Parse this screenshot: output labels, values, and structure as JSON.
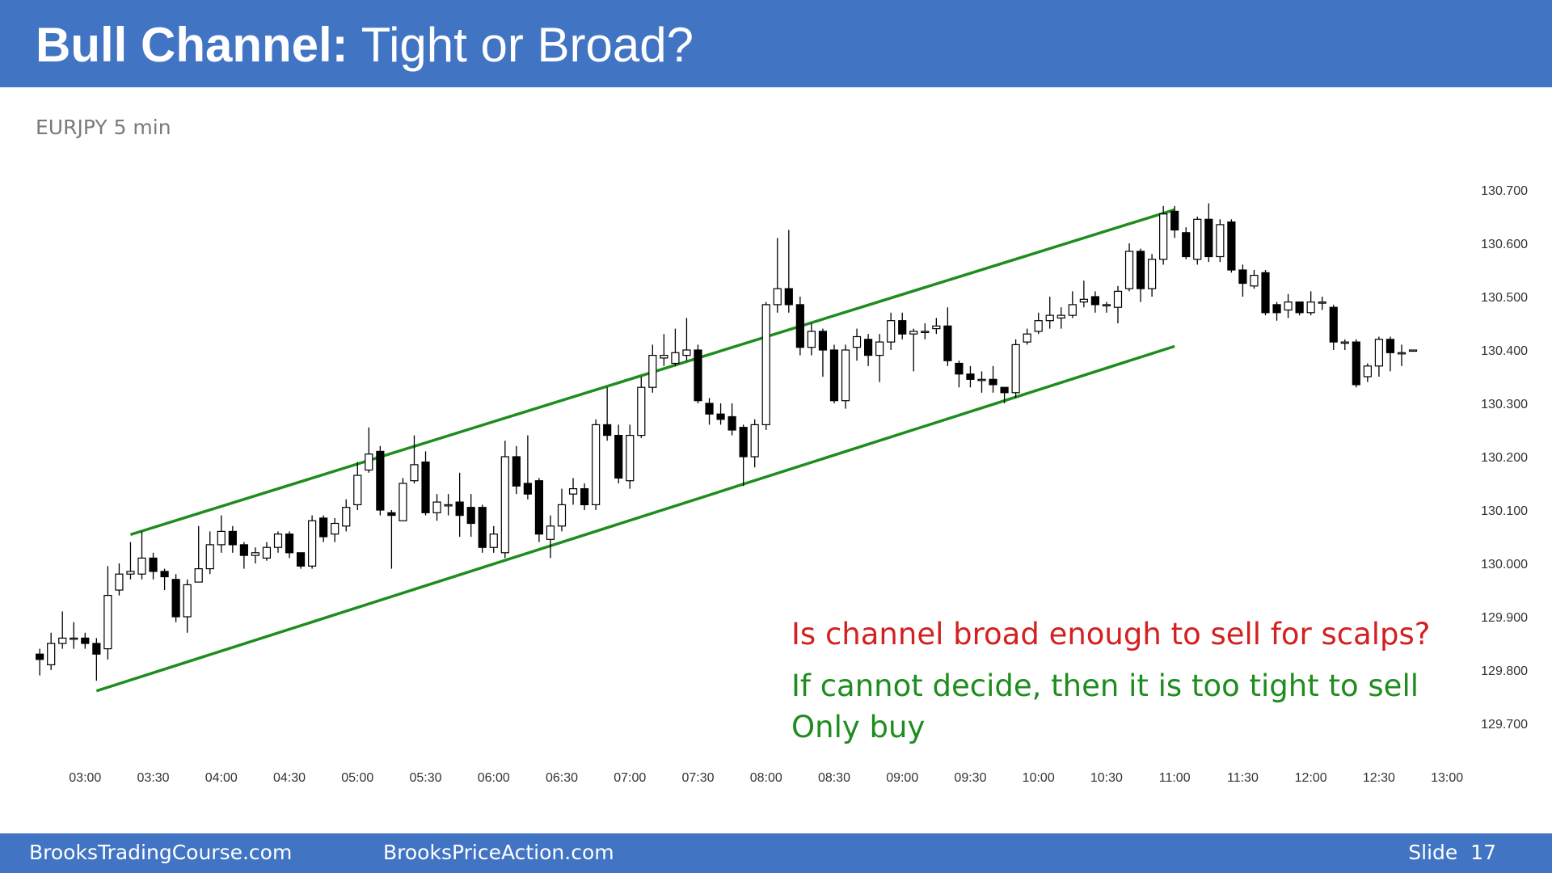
{
  "chart_data": {
    "type": "candlestick",
    "title": [
      "Bull Channel:",
      "Tight or Broad?"
    ],
    "subtitle": "EURJPY 5 min",
    "annotations": [
      {
        "text": "Is channel broad enough to sell for scalps?",
        "color": "#d42020"
      },
      {
        "text": "If cannot decide, then it is too tight to sell",
        "color": "#1e8c1e"
      },
      {
        "text": "Only buy",
        "color": "#1e8c1e"
      }
    ],
    "up_color": "#ffffff",
    "down_color": "#000000",
    "x": [
      "02:40",
      "02:45",
      "02:50",
      "02:55",
      "03:00",
      "03:05",
      "03:10",
      "03:15",
      "03:20",
      "03:25",
      "03:30",
      "03:35",
      "03:40",
      "03:45",
      "03:50",
      "03:55",
      "04:00",
      "04:05",
      "04:10",
      "04:15",
      "04:20",
      "04:25",
      "04:30",
      "04:35",
      "04:40",
      "04:45",
      "04:50",
      "04:55",
      "05:00",
      "05:05",
      "05:10",
      "05:15",
      "05:20",
      "05:25",
      "05:30",
      "05:35",
      "05:40",
      "05:45",
      "05:50",
      "05:55",
      "06:00",
      "06:05",
      "06:10",
      "06:15",
      "06:20",
      "06:25",
      "06:30",
      "06:35",
      "06:40",
      "06:45",
      "06:50",
      "06:55",
      "07:00",
      "07:05",
      "07:10",
      "07:15",
      "07:20",
      "07:25",
      "07:30",
      "07:35",
      "07:40",
      "07:45",
      "07:50",
      "07:55",
      "08:00",
      "08:05",
      "08:10",
      "08:15",
      "08:20",
      "08:25",
      "08:30",
      "08:35",
      "08:40",
      "08:45",
      "08:50",
      "08:55",
      "09:00",
      "09:05",
      "09:10",
      "09:15",
      "09:20",
      "09:25",
      "09:30",
      "09:35",
      "09:40",
      "09:45",
      "09:50",
      "09:55",
      "10:00",
      "10:05",
      "10:10",
      "10:15",
      "10:20",
      "10:25",
      "10:30",
      "10:35",
      "10:40",
      "10:45",
      "10:50",
      "10:55",
      "11:00",
      "11:05",
      "11:10",
      "11:15",
      "11:20",
      "11:25",
      "11:30",
      "11:35",
      "11:40",
      "11:45",
      "11:50",
      "11:55",
      "12:00",
      "12:05",
      "12:10",
      "12:15",
      "12:20",
      "12:25",
      "12:30",
      "12:35",
      "12:40",
      "12:45"
    ],
    "open": [
      129.83,
      129.81,
      129.85,
      129.86,
      129.86,
      129.85,
      129.84,
      129.95,
      129.98,
      129.98,
      130.01,
      129.985,
      129.97,
      129.9,
      129.965,
      129.99,
      130.035,
      130.06,
      130.035,
      130.015,
      130.01,
      130.03,
      130.055,
      130.02,
      129.995,
      130.085,
      130.055,
      130.07,
      130.11,
      130.175,
      130.21,
      130.095,
      130.08,
      130.155,
      130.19,
      130.095,
      130.11,
      130.115,
      130.105,
      130.105,
      130.03,
      130.02,
      130.2,
      130.15,
      130.155,
      130.045,
      130.07,
      130.13,
      130.14,
      130.11,
      130.26,
      130.24,
      130.155,
      130.24,
      130.33,
      130.385,
      130.375,
      130.39,
      130.4,
      130.3,
      130.28,
      130.275,
      130.255,
      130.2,
      130.26,
      130.485,
      130.515,
      130.485,
      130.405,
      130.435,
      130.4,
      130.305,
      130.405,
      130.42,
      130.39,
      130.415,
      130.455,
      130.43,
      130.435,
      130.44,
      130.445,
      130.375,
      130.355,
      130.345,
      130.345,
      130.33,
      130.32,
      130.415,
      130.435,
      130.455,
      130.46,
      130.465,
      130.49,
      130.5,
      130.485,
      130.48,
      130.515,
      130.585,
      130.515,
      130.57,
      130.66,
      130.62,
      130.57,
      130.645,
      130.575,
      130.64,
      130.55,
      130.52,
      130.545,
      130.485,
      130.475,
      130.49,
      130.47,
      130.49,
      130.48,
      130.415,
      130.415,
      130.35,
      130.37,
      130.42,
      130.395,
      130.4
    ],
    "high": [
      129.84,
      129.87,
      129.91,
      129.89,
      129.87,
      129.86,
      129.995,
      130.0,
      130.04,
      130.06,
      130.02,
      129.99,
      129.98,
      129.97,
      130.07,
      130.06,
      130.09,
      130.07,
      130.04,
      130.03,
      130.04,
      130.06,
      130.06,
      130.02,
      130.09,
      130.09,
      130.085,
      130.12,
      130.19,
      130.255,
      130.22,
      130.1,
      130.16,
      130.24,
      130.21,
      130.13,
      130.13,
      130.17,
      130.13,
      130.11,
      130.07,
      130.23,
      130.22,
      130.24,
      130.16,
      130.09,
      130.14,
      130.16,
      130.15,
      130.27,
      130.33,
      130.26,
      130.26,
      130.35,
      130.41,
      130.43,
      130.44,
      130.46,
      130.41,
      130.31,
      130.3,
      130.3,
      130.26,
      130.27,
      130.49,
      130.61,
      130.625,
      130.5,
      130.45,
      130.44,
      130.41,
      130.41,
      130.44,
      130.43,
      130.43,
      130.47,
      130.47,
      130.44,
      130.45,
      130.46,
      130.48,
      130.38,
      130.37,
      130.36,
      130.37,
      130.33,
      130.42,
      130.44,
      130.47,
      130.5,
      130.48,
      130.51,
      130.53,
      130.51,
      130.49,
      130.52,
      130.6,
      130.59,
      130.58,
      130.67,
      130.67,
      130.63,
      130.65,
      130.675,
      130.645,
      130.645,
      130.56,
      130.55,
      130.55,
      130.49,
      130.505,
      130.49,
      130.51,
      130.5,
      130.485,
      130.42,
      130.42,
      130.375,
      130.425,
      130.425,
      130.41,
      130.4
    ],
    "low": [
      129.79,
      129.8,
      129.84,
      129.84,
      129.84,
      129.78,
      129.82,
      129.94,
      129.97,
      129.97,
      129.97,
      129.95,
      129.89,
      129.87,
      129.965,
      129.98,
      130.02,
      130.02,
      129.99,
      130.0,
      130.005,
      130.02,
      130.01,
      129.99,
      129.99,
      130.04,
      130.04,
      130.06,
      130.1,
      130.17,
      130.09,
      129.99,
      130.08,
      130.15,
      130.09,
      130.08,
      130.09,
      130.05,
      130.05,
      130.02,
      130.02,
      130.01,
      130.13,
      130.12,
      130.04,
      130.01,
      130.06,
      130.11,
      130.1,
      130.1,
      130.23,
      130.15,
      130.14,
      130.235,
      130.32,
      130.37,
      130.37,
      130.38,
      130.3,
      130.26,
      130.26,
      130.24,
      130.145,
      130.18,
      130.25,
      130.47,
      130.47,
      130.39,
      130.39,
      130.35,
      130.3,
      130.29,
      130.38,
      130.37,
      130.34,
      130.4,
      130.42,
      130.36,
      130.42,
      130.43,
      130.37,
      130.33,
      130.33,
      130.32,
      130.32,
      130.3,
      130.31,
      130.41,
      130.43,
      130.44,
      130.44,
      130.46,
      130.48,
      130.47,
      130.47,
      130.45,
      130.51,
      130.49,
      130.5,
      130.56,
      130.61,
      130.57,
      130.56,
      130.565,
      130.565,
      130.545,
      130.5,
      130.515,
      130.465,
      130.455,
      130.46,
      130.465,
      130.465,
      130.475,
      130.4,
      130.4,
      130.33,
      130.34,
      130.35,
      130.36,
      130.37,
      130.4
    ],
    "close": [
      129.82,
      129.85,
      129.86,
      129.86,
      129.85,
      129.83,
      129.94,
      129.98,
      129.985,
      130.01,
      129.985,
      129.975,
      129.9,
      129.96,
      129.99,
      130.035,
      130.06,
      130.035,
      130.015,
      130.02,
      130.03,
      130.055,
      130.02,
      129.995,
      130.08,
      130.05,
      130.075,
      130.105,
      130.165,
      130.205,
      130.1,
      130.09,
      130.15,
      130.185,
      130.095,
      130.115,
      130.11,
      130.09,
      130.075,
      130.03,
      130.055,
      130.2,
      130.145,
      130.13,
      130.055,
      130.07,
      130.11,
      130.14,
      130.11,
      130.26,
      130.24,
      130.16,
      130.24,
      130.33,
      130.39,
      130.39,
      130.395,
      130.4,
      130.305,
      130.28,
      130.27,
      130.25,
      130.2,
      130.26,
      130.485,
      130.515,
      130.485,
      130.405,
      130.435,
      130.4,
      130.305,
      130.4,
      130.425,
      130.39,
      130.415,
      130.455,
      130.43,
      130.435,
      130.435,
      130.445,
      130.38,
      130.355,
      130.345,
      130.345,
      130.335,
      130.32,
      130.41,
      130.43,
      130.455,
      130.465,
      130.465,
      130.485,
      130.495,
      130.485,
      130.485,
      130.51,
      130.585,
      130.515,
      130.57,
      130.655,
      130.625,
      130.575,
      130.645,
      130.575,
      130.635,
      130.55,
      130.525,
      130.54,
      130.47,
      130.47,
      130.49,
      130.47,
      130.49,
      130.49,
      130.415,
      130.415,
      130.335,
      130.37,
      130.42,
      130.395,
      130.395,
      130.4
    ],
    "lines": [
      {
        "color": "#1e8c1e",
        "x": [
          "03:20",
          "11:00"
        ],
        "y": [
          130.054,
          130.663
        ]
      },
      {
        "color": "#1e8c1e",
        "x": [
          "03:05",
          "11:00"
        ],
        "y": [
          129.761,
          130.407
        ]
      }
    ],
    "xlim": [
      "02:35",
      "13:05"
    ],
    "xticks": [
      "03:00",
      "03:30",
      "04:00",
      "04:30",
      "05:00",
      "05:30",
      "06:00",
      "06:30",
      "07:00",
      "07:30",
      "08:00",
      "08:30",
      "09:00",
      "09:30",
      "10:00",
      "10:30",
      "11:00",
      "11:30",
      "12:00",
      "12:30",
      "13:00"
    ],
    "ylim": [
      129.7,
      130.7
    ],
    "yticks": [
      {
        "value": 129.7,
        "label": "129.700"
      },
      {
        "value": 129.8,
        "label": "129.800"
      },
      {
        "value": 129.9,
        "label": "129.900"
      },
      {
        "value": 130.0,
        "label": "130.000"
      },
      {
        "value": 130.1,
        "label": "130.100"
      },
      {
        "value": 130.2,
        "label": "130.200"
      },
      {
        "value": 130.3,
        "label": "130.300"
      },
      {
        "value": 130.4,
        "label": "130.400"
      },
      {
        "value": 130.5,
        "label": "130.500"
      },
      {
        "value": 130.6,
        "label": "130.600"
      },
      {
        "value": 130.7,
        "label": "130.700"
      }
    ],
    "grid": false
  },
  "footer": {
    "left": "BrooksTradingCourse.com",
    "center": "BrooksPriceAction.com",
    "slide": "Slide  17"
  }
}
